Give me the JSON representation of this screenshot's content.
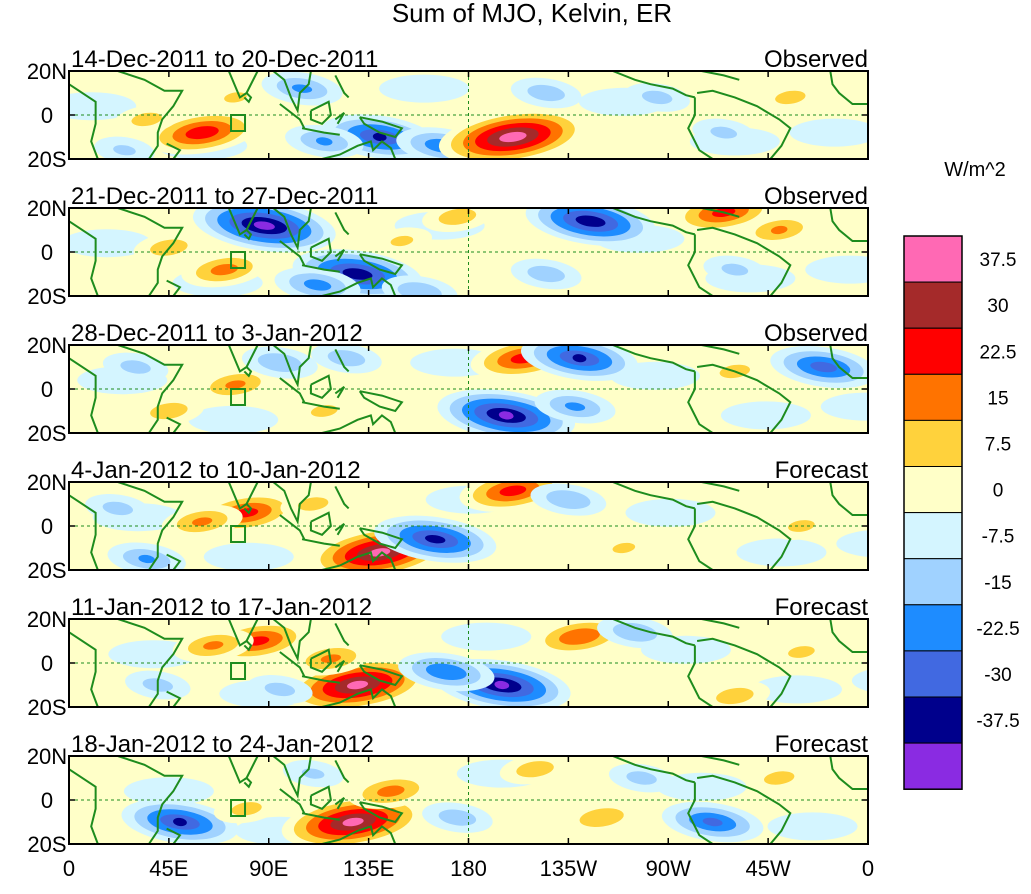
{
  "chart_data": {
    "type": "heatmap",
    "title": "Sum of MJO, Kelvin, ER",
    "lat_labels": [
      "20N",
      "0",
      "20S"
    ],
    "lon_labels": [
      "0",
      "45E",
      "90E",
      "135E",
      "180",
      "135W",
      "90W",
      "45W",
      "0"
    ],
    "colorbar": {
      "units": "W/m^2",
      "levels": [
        "37.5",
        "30",
        "22.5",
        "15",
        "7.5",
        "0",
        "-7.5",
        "-15",
        "-22.5",
        "-30",
        "-37.5"
      ],
      "colors": [
        "#ff69b4",
        "#a52a2a",
        "#ff0000",
        "#ff7300",
        "#ffd23c",
        "#ffffc8",
        "#d4f5ff",
        "#a0d2ff",
        "#1e8cff",
        "#4169e1",
        "#00008c",
        "#8a2be2"
      ]
    },
    "panels": [
      {
        "period": "14-Dec-2011 to 20-Dec-2011",
        "status": "Observed",
        "anomalies": [
          {
            "lon": 60,
            "lat": -8,
            "value": 28
          },
          {
            "lon": 35,
            "lat": -2,
            "value": 10
          },
          {
            "lon": 75,
            "lat": 8,
            "value": 8
          },
          {
            "lon": 105,
            "lat": 12,
            "value": -16
          },
          {
            "lon": 140,
            "lat": -10,
            "value": -30
          },
          {
            "lon": 115,
            "lat": -12,
            "value": -15
          },
          {
            "lon": 168,
            "lat": -14,
            "value": -20
          },
          {
            "lon": 200,
            "lat": -10,
            "value": 42
          },
          {
            "lon": 215,
            "lat": 10,
            "value": -12
          },
          {
            "lon": 265,
            "lat": 8,
            "value": -10
          },
          {
            "lon": 295,
            "lat": -8,
            "value": -9
          },
          {
            "lon": 325,
            "lat": 8,
            "value": 10
          },
          {
            "lon": 25,
            "lat": -16,
            "value": -8
          }
        ]
      },
      {
        "period": "21-Dec-2011 to 27-Dec-2011",
        "status": "Observed",
        "anomalies": [
          {
            "lon": 88,
            "lat": 12,
            "value": -40
          },
          {
            "lon": 70,
            "lat": -8,
            "value": 18
          },
          {
            "lon": 45,
            "lat": 2,
            "value": 12
          },
          {
            "lon": 130,
            "lat": -10,
            "value": -35
          },
          {
            "lon": 112,
            "lat": -15,
            "value": -18
          },
          {
            "lon": 158,
            "lat": -18,
            "value": -14
          },
          {
            "lon": 175,
            "lat": 16,
            "value": 12
          },
          {
            "lon": 235,
            "lat": 14,
            "value": -35
          },
          {
            "lon": 215,
            "lat": -10,
            "value": -12
          },
          {
            "lon": 295,
            "lat": 18,
            "value": 25
          },
          {
            "lon": 320,
            "lat": 10,
            "value": 15
          },
          {
            "lon": 300,
            "lat": -8,
            "value": -9
          },
          {
            "lon": 150,
            "lat": 5,
            "value": 8
          }
        ]
      },
      {
        "period": "28-Dec-2011 to 3-Jan-2012",
        "status": "Observed",
        "anomalies": [
          {
            "lon": 205,
            "lat": 14,
            "value": 26
          },
          {
            "lon": 230,
            "lat": 14,
            "value": -30
          },
          {
            "lon": 197,
            "lat": -12,
            "value": -38
          },
          {
            "lon": 228,
            "lat": -8,
            "value": -16
          },
          {
            "lon": 75,
            "lat": 2,
            "value": 16
          },
          {
            "lon": 95,
            "lat": 12,
            "value": -14
          },
          {
            "lon": 45,
            "lat": -10,
            "value": 12
          },
          {
            "lon": 125,
            "lat": 14,
            "value": -12
          },
          {
            "lon": 340,
            "lat": 10,
            "value": -26
          },
          {
            "lon": 300,
            "lat": 8,
            "value": 10
          },
          {
            "lon": 30,
            "lat": 10,
            "value": -10
          },
          {
            "lon": 115,
            "lat": -10,
            "value": 9
          }
        ]
      },
      {
        "period": "4-Jan-2012 to 10-Jan-2012",
        "status": "Forecast",
        "anomalies": [
          {
            "lon": 80,
            "lat": 6,
            "value": 25
          },
          {
            "lon": 60,
            "lat": 2,
            "value": 16
          },
          {
            "lon": 140,
            "lat": -12,
            "value": 40
          },
          {
            "lon": 165,
            "lat": -6,
            "value": -32
          },
          {
            "lon": 200,
            "lat": 16,
            "value": 26
          },
          {
            "lon": 225,
            "lat": 12,
            "value": -14
          },
          {
            "lon": 35,
            "lat": -15,
            "value": -15
          },
          {
            "lon": 110,
            "lat": 10,
            "value": 10
          },
          {
            "lon": 250,
            "lat": -10,
            "value": 8
          },
          {
            "lon": 330,
            "lat": 0,
            "value": 9
          },
          {
            "lon": 22,
            "lat": 8,
            "value": -10
          }
        ]
      },
      {
        "period": "11-Jan-2012 to 17-Jan-2012",
        "status": "Forecast",
        "anomalies": [
          {
            "lon": 85,
            "lat": 10,
            "value": 25
          },
          {
            "lon": 65,
            "lat": 8,
            "value": 16
          },
          {
            "lon": 130,
            "lat": -10,
            "value": 40
          },
          {
            "lon": 118,
            "lat": 2,
            "value": 16
          },
          {
            "lon": 195,
            "lat": -10,
            "value": -38
          },
          {
            "lon": 170,
            "lat": -4,
            "value": -22
          },
          {
            "lon": 230,
            "lat": 12,
            "value": 22
          },
          {
            "lon": 255,
            "lat": 14,
            "value": -14
          },
          {
            "lon": 40,
            "lat": -10,
            "value": -10
          },
          {
            "lon": 300,
            "lat": -15,
            "value": 12
          },
          {
            "lon": 330,
            "lat": 5,
            "value": 9
          },
          {
            "lon": 95,
            "lat": -12,
            "value": -10
          }
        ]
      },
      {
        "period": "18-Jan-2012 to 24-Jan-2012",
        "status": "Forecast",
        "anomalies": [
          {
            "lon": 128,
            "lat": -10,
            "value": 40
          },
          {
            "lon": 145,
            "lat": 4,
            "value": 18
          },
          {
            "lon": 50,
            "lat": -10,
            "value": -30
          },
          {
            "lon": 80,
            "lat": -4,
            "value": 10
          },
          {
            "lon": 175,
            "lat": -8,
            "value": -12
          },
          {
            "lon": 210,
            "lat": 14,
            "value": 12
          },
          {
            "lon": 240,
            "lat": -8,
            "value": 14
          },
          {
            "lon": 290,
            "lat": -10,
            "value": -24
          },
          {
            "lon": 320,
            "lat": 10,
            "value": 10
          },
          {
            "lon": 258,
            "lat": 10,
            "value": -10
          },
          {
            "lon": 110,
            "lat": 12,
            "value": -8
          }
        ]
      }
    ]
  }
}
